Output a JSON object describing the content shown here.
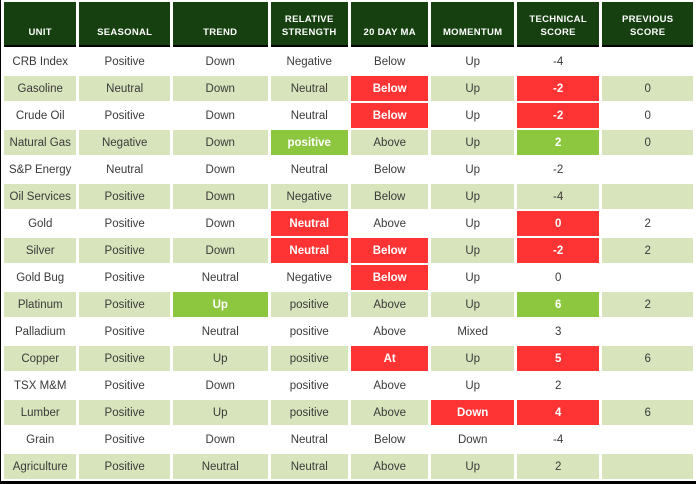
{
  "colors": {
    "header_bg": "#164010",
    "row_alt": "#d8e4bc",
    "highlight_red": "#fe3333",
    "highlight_green": "#8dc63f"
  },
  "chart_data": {
    "type": "table",
    "title": "",
    "columns": [
      "UNIT",
      "SEASONAL",
      "TREND",
      "RELATIVE STRENGTH",
      "20 DAY MA",
      "MOMENTUM",
      "TECHNICAL SCORE",
      "PREVIOUS SCORE"
    ],
    "rows": [
      {
        "cells": [
          {
            "t": "CRB Index"
          },
          {
            "t": "Positive"
          },
          {
            "t": "Down"
          },
          {
            "t": "Negative"
          },
          {
            "t": "Below"
          },
          {
            "t": "Up"
          },
          {
            "t": "-4"
          },
          {
            "t": ""
          }
        ]
      },
      {
        "cells": [
          {
            "t": "Gasoline"
          },
          {
            "t": "Neutral"
          },
          {
            "t": "Down"
          },
          {
            "t": "Neutral"
          },
          {
            "t": "Below",
            "h": "red"
          },
          {
            "t": "Up"
          },
          {
            "t": "-2",
            "h": "red"
          },
          {
            "t": "0"
          }
        ]
      },
      {
        "cells": [
          {
            "t": "Crude Oil"
          },
          {
            "t": "Positive"
          },
          {
            "t": "Down"
          },
          {
            "t": "Neutral"
          },
          {
            "t": "Below",
            "h": "red"
          },
          {
            "t": "Up"
          },
          {
            "t": "-2",
            "h": "red"
          },
          {
            "t": "0"
          }
        ]
      },
      {
        "cells": [
          {
            "t": "Natural Gas"
          },
          {
            "t": "Negative"
          },
          {
            "t": "Down"
          },
          {
            "t": "positive",
            "h": "green"
          },
          {
            "t": "Above"
          },
          {
            "t": "Up"
          },
          {
            "t": "2",
            "h": "green"
          },
          {
            "t": "0"
          }
        ]
      },
      {
        "cells": [
          {
            "t": "S&P Energy"
          },
          {
            "t": "Neutral"
          },
          {
            "t": "Down"
          },
          {
            "t": "Neutral"
          },
          {
            "t": "Below"
          },
          {
            "t": "Up"
          },
          {
            "t": "-2"
          },
          {
            "t": ""
          }
        ]
      },
      {
        "cells": [
          {
            "t": "Oil Services"
          },
          {
            "t": "Positive"
          },
          {
            "t": "Down"
          },
          {
            "t": "Negative"
          },
          {
            "t": "Below"
          },
          {
            "t": "Up"
          },
          {
            "t": "-4"
          },
          {
            "t": ""
          }
        ]
      },
      {
        "cells": [
          {
            "t": "Gold"
          },
          {
            "t": "Positive"
          },
          {
            "t": "Down"
          },
          {
            "t": "Neutral",
            "h": "red"
          },
          {
            "t": "Above"
          },
          {
            "t": "Up"
          },
          {
            "t": "0",
            "h": "red"
          },
          {
            "t": "2"
          }
        ]
      },
      {
        "cells": [
          {
            "t": "Silver"
          },
          {
            "t": "Positive"
          },
          {
            "t": "Down"
          },
          {
            "t": "Neutral",
            "h": "red"
          },
          {
            "t": "Below",
            "h": "red"
          },
          {
            "t": "Up"
          },
          {
            "t": "-2",
            "h": "red"
          },
          {
            "t": "2"
          }
        ]
      },
      {
        "cells": [
          {
            "t": "Gold Bug"
          },
          {
            "t": "Positive"
          },
          {
            "t": "Neutral"
          },
          {
            "t": "Negative"
          },
          {
            "t": "Below",
            "h": "red"
          },
          {
            "t": "Up"
          },
          {
            "t": "0"
          },
          {
            "t": ""
          }
        ]
      },
      {
        "cells": [
          {
            "t": "Platinum"
          },
          {
            "t": "Positive"
          },
          {
            "t": "Up",
            "h": "green"
          },
          {
            "t": "positive"
          },
          {
            "t": "Above"
          },
          {
            "t": "Up"
          },
          {
            "t": "6",
            "h": "green"
          },
          {
            "t": "2"
          }
        ]
      },
      {
        "cells": [
          {
            "t": "Palladium"
          },
          {
            "t": "Positive"
          },
          {
            "t": "Neutral"
          },
          {
            "t": "positive"
          },
          {
            "t": "Above"
          },
          {
            "t": "Mixed"
          },
          {
            "t": "3"
          },
          {
            "t": ""
          }
        ]
      },
      {
        "cells": [
          {
            "t": "Copper"
          },
          {
            "t": "Positive"
          },
          {
            "t": "Up"
          },
          {
            "t": "positive"
          },
          {
            "t": "At",
            "h": "red"
          },
          {
            "t": "Up"
          },
          {
            "t": "5",
            "h": "red"
          },
          {
            "t": "6"
          }
        ]
      },
      {
        "cells": [
          {
            "t": "TSX M&M"
          },
          {
            "t": "Positive"
          },
          {
            "t": "Down"
          },
          {
            "t": "positive"
          },
          {
            "t": "Above"
          },
          {
            "t": "Up"
          },
          {
            "t": "2"
          },
          {
            "t": ""
          }
        ]
      },
      {
        "cells": [
          {
            "t": "Lumber"
          },
          {
            "t": "Positive"
          },
          {
            "t": "Up"
          },
          {
            "t": "positive"
          },
          {
            "t": "Above"
          },
          {
            "t": "Down",
            "h": "red"
          },
          {
            "t": "4",
            "h": "red"
          },
          {
            "t": "6"
          }
        ]
      },
      {
        "cells": [
          {
            "t": "Grain"
          },
          {
            "t": "Positive"
          },
          {
            "t": "Down"
          },
          {
            "t": "Neutral"
          },
          {
            "t": "Below"
          },
          {
            "t": "Down"
          },
          {
            "t": "-4"
          },
          {
            "t": ""
          }
        ]
      },
      {
        "cells": [
          {
            "t": "Agriculture"
          },
          {
            "t": "Positive"
          },
          {
            "t": "Neutral"
          },
          {
            "t": "Neutral"
          },
          {
            "t": "Above"
          },
          {
            "t": "Up"
          },
          {
            "t": "2"
          },
          {
            "t": ""
          }
        ]
      }
    ]
  }
}
